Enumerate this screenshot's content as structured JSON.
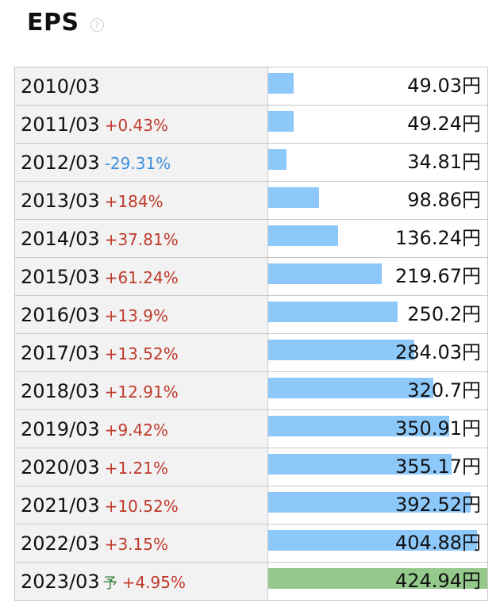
{
  "header": {
    "title": "EPS",
    "help_icon": "question-circle-icon"
  },
  "colors": {
    "bar": "#8dc8fa",
    "forecast_bar": "#94c98b",
    "positive": "#c0392b",
    "negative": "#3d8fe0"
  },
  "forecast_mark": "予",
  "unit": "円",
  "chart_data": {
    "type": "bar",
    "orientation": "horizontal",
    "title": "EPS",
    "categories": [
      "2010/03",
      "2011/03",
      "2012/03",
      "2013/03",
      "2014/03",
      "2015/03",
      "2016/03",
      "2017/03",
      "2018/03",
      "2019/03",
      "2020/03",
      "2021/03",
      "2022/03",
      "2023/03"
    ],
    "values": [
      49.03,
      49.24,
      34.81,
      98.86,
      136.24,
      219.67,
      250.2,
      284.03,
      320.7,
      350.91,
      355.17,
      392.52,
      404.88,
      424.94
    ],
    "rows": [
      {
        "period": "2010/03",
        "change": "",
        "value": 49.03,
        "value_text": "49.03円",
        "forecast": false
      },
      {
        "period": "2011/03",
        "change": "+0.43%",
        "value": 49.24,
        "value_text": "49.24円",
        "forecast": false
      },
      {
        "period": "2012/03",
        "change": "-29.31%",
        "value": 34.81,
        "value_text": "34.81円",
        "forecast": false
      },
      {
        "period": "2013/03",
        "change": "+184%",
        "value": 98.86,
        "value_text": "98.86円",
        "forecast": false
      },
      {
        "period": "2014/03",
        "change": "+37.81%",
        "value": 136.24,
        "value_text": "136.24円",
        "forecast": false
      },
      {
        "period": "2015/03",
        "change": "+61.24%",
        "value": 219.67,
        "value_text": "219.67円",
        "forecast": false
      },
      {
        "period": "2016/03",
        "change": "+13.9%",
        "value": 250.2,
        "value_text": "250.2円",
        "forecast": false
      },
      {
        "period": "2017/03",
        "change": "+13.52%",
        "value": 284.03,
        "value_text": "284.03円",
        "forecast": false
      },
      {
        "period": "2018/03",
        "change": "+12.91%",
        "value": 320.7,
        "value_text": "320.7円",
        "forecast": false
      },
      {
        "period": "2019/03",
        "change": "+9.42%",
        "value": 350.91,
        "value_text": "350.91円",
        "forecast": false
      },
      {
        "period": "2020/03",
        "change": "+1.21%",
        "value": 355.17,
        "value_text": "355.17円",
        "forecast": false
      },
      {
        "period": "2021/03",
        "change": "+10.52%",
        "value": 392.52,
        "value_text": "392.52円",
        "forecast": false
      },
      {
        "period": "2022/03",
        "change": "+3.15%",
        "value": 404.88,
        "value_text": "404.88円",
        "forecast": false
      },
      {
        "period": "2023/03",
        "change": "+4.95%",
        "value": 424.94,
        "value_text": "424.94円",
        "forecast": true
      }
    ],
    "xlim": [
      0,
      424.94
    ]
  }
}
